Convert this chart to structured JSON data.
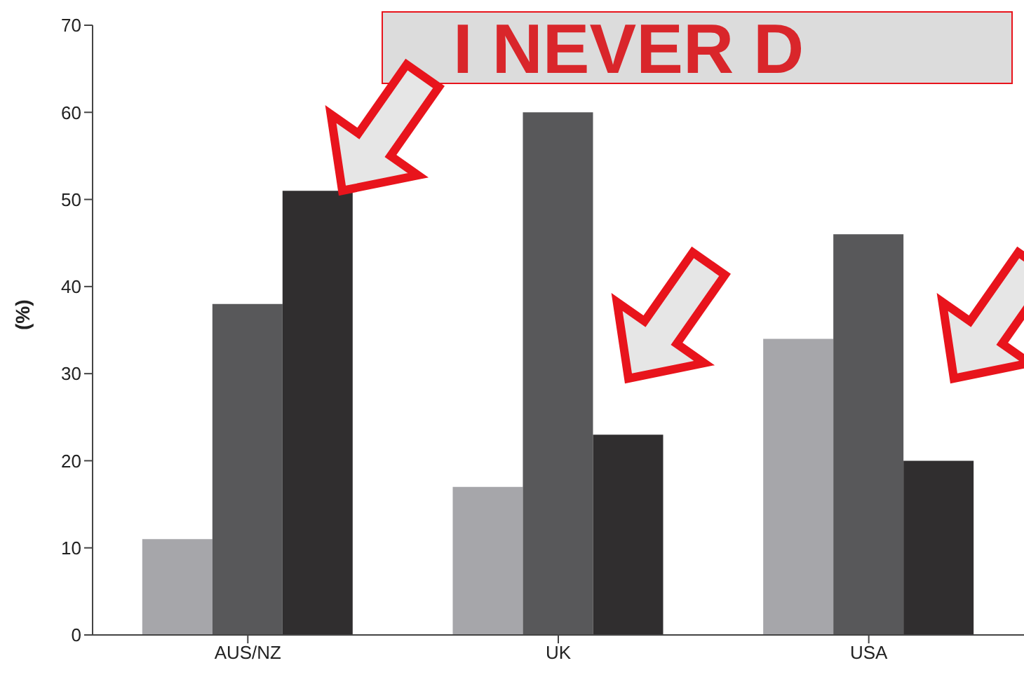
{
  "chart_data": {
    "type": "bar",
    "ylabel": "(%)",
    "categories": [
      "AUS/NZ",
      "UK",
      "USA"
    ],
    "series": [
      {
        "color": "#a6a6aa",
        "values": [
          11,
          17,
          34
        ]
      },
      {
        "color": "#58585a",
        "values": [
          38,
          60,
          46
        ]
      },
      {
        "color": "#302e2f",
        "values": [
          51,
          23,
          20
        ]
      }
    ],
    "ylim": [
      0,
      70
    ],
    "yticks": [
      0,
      10,
      20,
      30,
      40,
      50,
      60,
      70
    ],
    "grid": false,
    "legend": false,
    "annotations": [
      "I NEVER D"
    ]
  }
}
